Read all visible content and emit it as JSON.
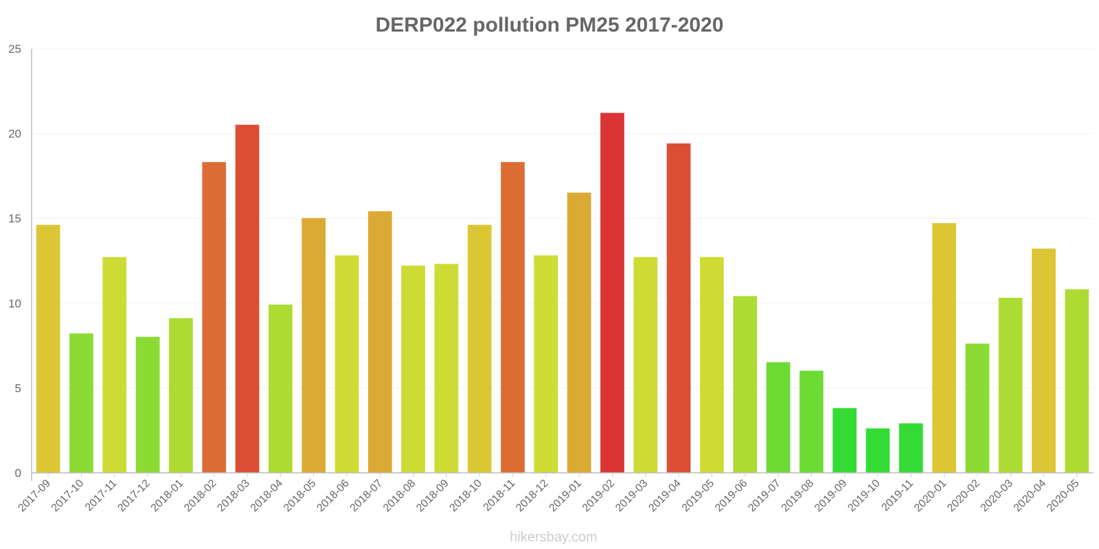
{
  "chart_data": {
    "type": "bar",
    "title": "DERP022 pollution PM25 2017-2020",
    "xlabel": "",
    "ylabel": "",
    "ylim": [
      0,
      25
    ],
    "yticks": [
      0,
      5,
      10,
      15,
      20,
      25
    ],
    "grid": true,
    "categories": [
      "2017-09",
      "2017-10",
      "2017-11",
      "2017-12",
      "2018-01",
      "2018-02",
      "2018-03",
      "2018-04",
      "2018-05",
      "2018-06",
      "2018-07",
      "2018-08",
      "2018-09",
      "2018-10",
      "2018-11",
      "2018-12",
      "2019-01",
      "2019-02",
      "2019-03",
      "2019-04",
      "2019-05",
      "2019-06",
      "2019-07",
      "2019-08",
      "2019-09",
      "2019-10",
      "2019-11",
      "2020-01",
      "2020-02",
      "2020-03",
      "2020-04",
      "2020-05"
    ],
    "values": [
      14.6,
      8.2,
      12.7,
      8.0,
      9.1,
      18.3,
      20.5,
      9.9,
      15.0,
      12.8,
      15.4,
      12.2,
      12.3,
      14.6,
      18.3,
      12.8,
      16.5,
      21.2,
      12.7,
      19.4,
      12.7,
      10.4,
      6.5,
      6.0,
      3.8,
      2.6,
      2.9,
      14.7,
      7.6,
      10.3,
      13.2,
      10.8
    ],
    "colors": [
      "#dbc734",
      "#8bdb34",
      "#cddb34",
      "#8bdb34",
      "#acdb34",
      "#db6d34",
      "#db4e34",
      "#acdb34",
      "#dbaa34",
      "#cddb34",
      "#dbaa34",
      "#cddb34",
      "#cddb34",
      "#dbc734",
      "#db6d34",
      "#cddb34",
      "#dbaa34",
      "#db3434",
      "#cddb34",
      "#db4e34",
      "#cddb34",
      "#acdb34",
      "#6bdb34",
      "#6bdb34",
      "#34db34",
      "#34db34",
      "#34db34",
      "#dbc734",
      "#8bdb34",
      "#acdb34",
      "#dbc734",
      "#acdb34"
    ]
  },
  "watermark": "hikersbay.com"
}
